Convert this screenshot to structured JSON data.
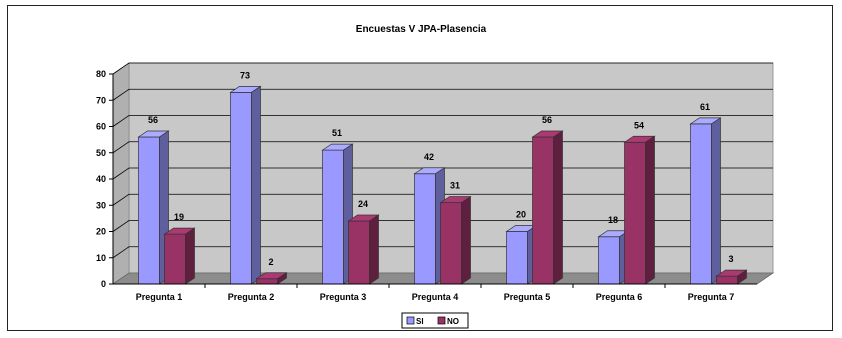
{
  "chart_data": {
    "type": "bar",
    "title": "Encuestas V JPA-Plasencia",
    "categories": [
      "Pregunta 1",
      "Pregunta 2",
      "Pregunta 3",
      "Pregunta 4",
      "Pregunta 5",
      "Pregunta 6",
      "Pregunta 7"
    ],
    "series": [
      {
        "name": "SI",
        "values": [
          56,
          73,
          51,
          42,
          20,
          18,
          61
        ],
        "color": "#9999ff"
      },
      {
        "name": "NO",
        "values": [
          19,
          2,
          24,
          31,
          56,
          54,
          3
        ],
        "color": "#993366"
      }
    ],
    "ylim": [
      0,
      80
    ],
    "yticks": [
      "0",
      "10",
      "20",
      "30",
      "40",
      "50",
      "60",
      "70",
      "80"
    ],
    "grid": true,
    "legend_position": "bottom-center",
    "data_labels": {
      "SI": [
        "56",
        "73",
        "51",
        "42",
        "20",
        "18",
        "61"
      ],
      "NO": [
        "19",
        "2",
        "24",
        "31",
        "56",
        "54",
        "3"
      ]
    }
  }
}
